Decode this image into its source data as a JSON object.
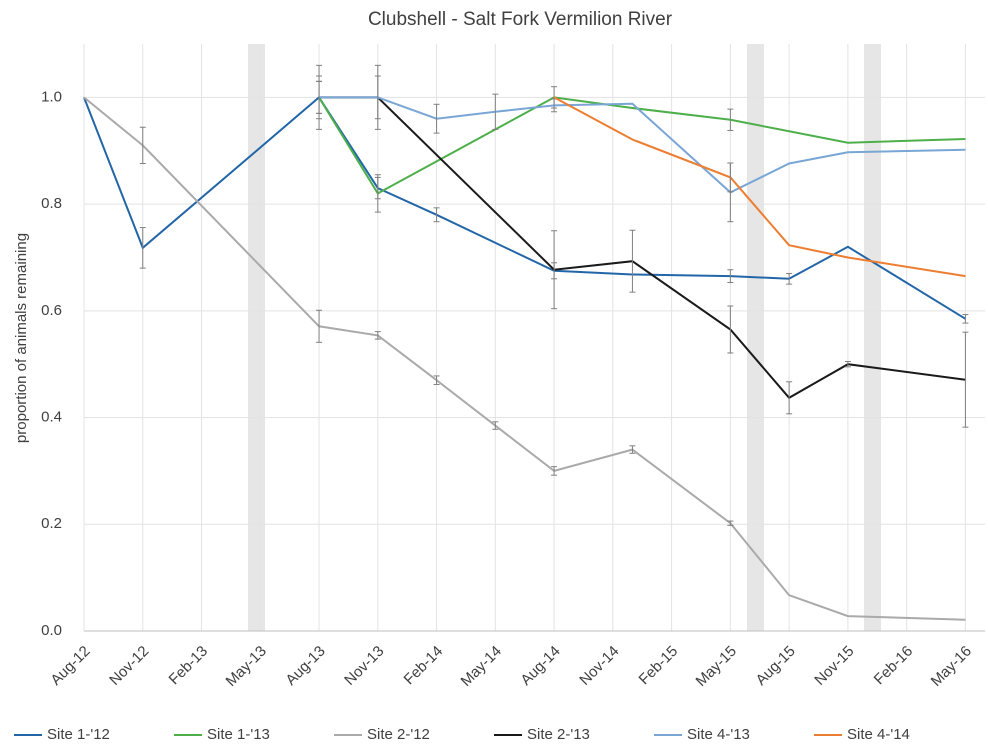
{
  "chart_data": {
    "type": "line",
    "title": "Clubshell - Salt Fork Vermilion River",
    "y_label": "proportion of animals remaining",
    "xlim": [
      "2012-08",
      "2016-06"
    ],
    "ylim": [
      0,
      1.1
    ],
    "xticks": [
      {
        "value": "2012-08",
        "label": "Aug-12"
      },
      {
        "value": "2012-11",
        "label": "Nov-12"
      },
      {
        "value": "2013-02",
        "label": "Feb-13"
      },
      {
        "value": "2013-05",
        "label": "May-13"
      },
      {
        "value": "2013-08",
        "label": "Aug-13"
      },
      {
        "value": "2013-11",
        "label": "Nov-13"
      },
      {
        "value": "2014-02",
        "label": "Feb-14"
      },
      {
        "value": "2014-05",
        "label": "May-14"
      },
      {
        "value": "2014-08",
        "label": "Aug-14"
      },
      {
        "value": "2014-11",
        "label": "Nov-14"
      },
      {
        "value": "2015-02",
        "label": "Feb-15"
      },
      {
        "value": "2015-05",
        "label": "May-15"
      },
      {
        "value": "2015-08",
        "label": "Aug-15"
      },
      {
        "value": "2015-11",
        "label": "Nov-15"
      },
      {
        "value": "2016-02",
        "label": "Feb-16"
      },
      {
        "value": "2016-05",
        "label": "May-16"
      }
    ],
    "yticks": [
      {
        "value": 0,
        "label": "0.0"
      },
      {
        "value": 0.2,
        "label": "0.2"
      },
      {
        "value": 0.4,
        "label": "0.4"
      },
      {
        "value": 0.6,
        "label": "0.6"
      },
      {
        "value": 0.8,
        "label": "0.8"
      },
      {
        "value": 1,
        "label": "1.0"
      }
    ],
    "grid": true,
    "series": [
      {
        "name": "Site 1-'12",
        "color": "#2366a8",
        "x": [
          "2012-08",
          "2012-11",
          "2013-08",
          "2013-11",
          "2014-02",
          "2014-08",
          "2014-12",
          "2015-05",
          "2015-08",
          "2015-11",
          "2016-05"
        ],
        "values": [
          1.0,
          0.718,
          1.0,
          0.83,
          0.78,
          0.675,
          0.668,
          0.665,
          0.66,
          0.72,
          0.585
        ],
        "errors": [
          null,
          0.038,
          0.03,
          0.02,
          0.013,
          0.015,
          null,
          0.012,
          0.01,
          null,
          0.008
        ]
      },
      {
        "name": "Site 1-'13",
        "color": "#4daf4a",
        "x": [
          "2013-08",
          "2013-11",
          "2014-08",
          "2014-12",
          "2015-05",
          "2015-11",
          "2016-05"
        ],
        "values": [
          1.0,
          0.82,
          1.0,
          0.98,
          0.958,
          0.915,
          0.922
        ],
        "errors": [
          0.06,
          0.035,
          0.02,
          null,
          0.02,
          null,
          null
        ]
      },
      {
        "name": "Site 2-'12",
        "color": "#aaaaaa",
        "x": [
          "2012-08",
          "2012-11",
          "2013-08",
          "2013-11",
          "2014-02",
          "2014-05",
          "2014-08",
          "2014-12",
          "2015-05",
          "2015-08",
          "2015-11",
          "2016-05"
        ],
        "values": [
          1.0,
          0.91,
          0.571,
          0.554,
          0.47,
          0.385,
          0.3,
          0.34,
          0.202,
          0.067,
          0.028,
          0.021
        ],
        "errors": [
          null,
          0.034,
          0.03,
          0.007,
          0.008,
          0.007,
          0.008,
          0.007,
          0.004,
          null,
          null,
          null
        ]
      },
      {
        "name": "Site 2-'13",
        "color": "#1a1a1a",
        "x": [
          "2013-08",
          "2013-11",
          "2014-08",
          "2014-12",
          "2015-05",
          "2015-08",
          "2015-11",
          "2016-05"
        ],
        "values": [
          1.0,
          1.0,
          0.677,
          0.693,
          0.565,
          0.437,
          0.5,
          0.471
        ],
        "errors": [
          0.04,
          0.06,
          0.073,
          0.058,
          0.044,
          0.03,
          0.005,
          0.089
        ]
      },
      {
        "name": "Site 4-'13",
        "color": "#7aa6d6",
        "x": [
          "2013-08",
          "2013-11",
          "2014-02",
          "2014-05",
          "2014-08",
          "2014-12",
          "2015-05",
          "2015-08",
          "2015-11",
          "2016-05"
        ],
        "values": [
          1.0,
          1.0,
          0.96,
          0.973,
          0.985,
          0.988,
          0.822,
          0.876,
          0.897,
          0.902
        ],
        "errors": [
          0.03,
          0.04,
          0.027,
          0.033,
          0.012,
          null,
          0.055,
          null,
          null,
          null
        ]
      },
      {
        "name": "Site 4-'14",
        "color": "#ed7d31",
        "x": [
          "2014-08",
          "2014-12",
          "2015-05",
          "2015-08",
          "2015-11",
          "2016-05"
        ],
        "values": [
          1.0,
          0.921,
          0.85,
          0.723,
          0.7,
          0.665
        ],
        "errors": [
          null,
          null,
          0.027,
          null,
          null,
          null
        ]
      }
    ]
  }
}
